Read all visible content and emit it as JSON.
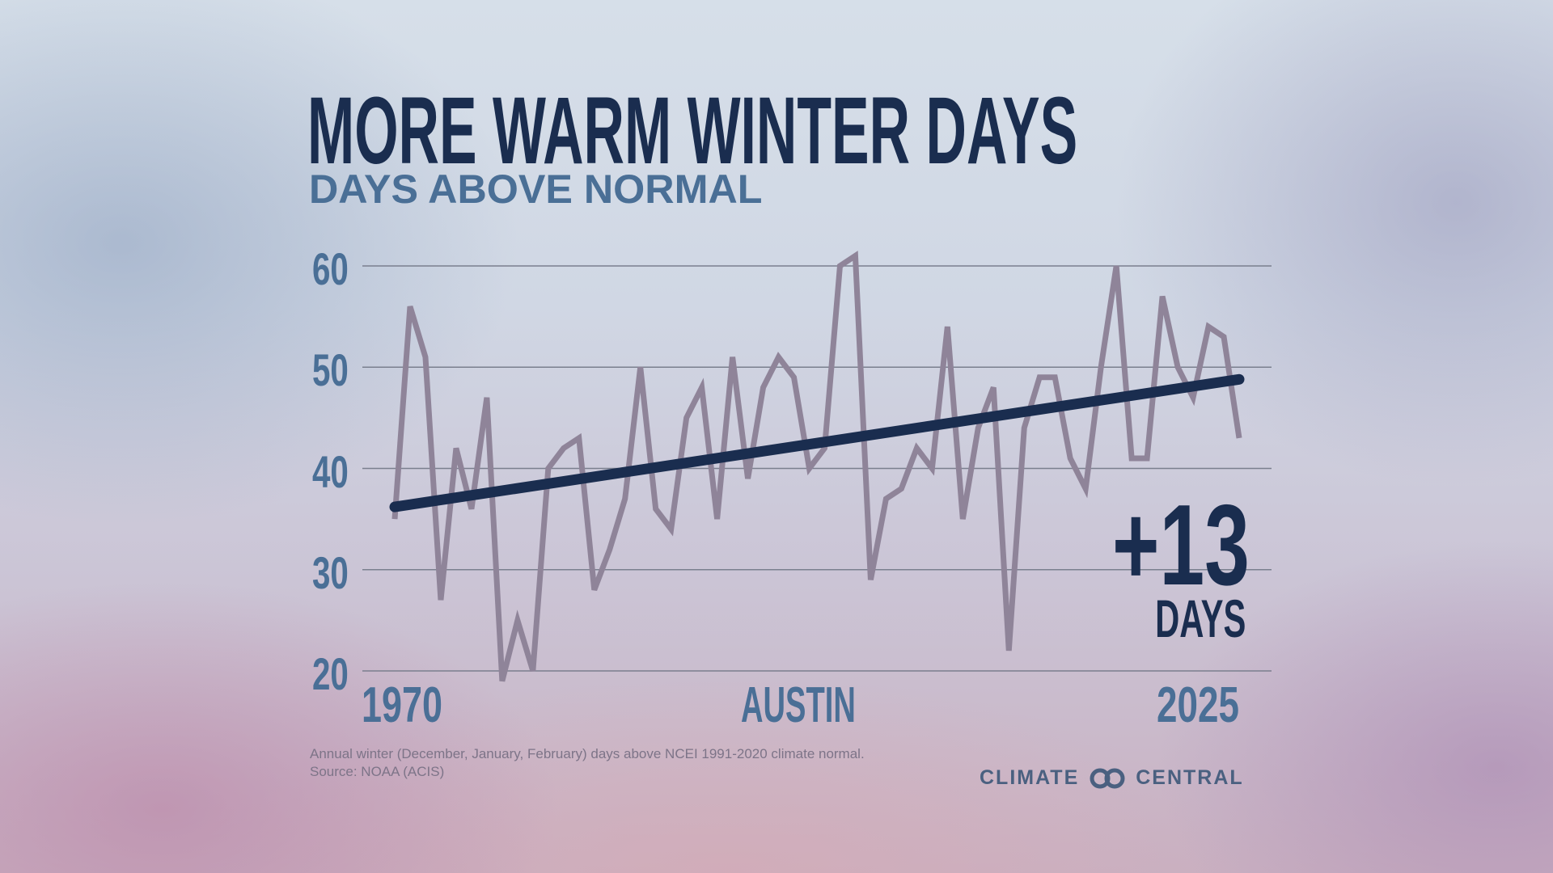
{
  "title": "MORE WARM WINTER DAYS",
  "subtitle": "DAYS ABOVE NORMAL",
  "location": "AUSTIN",
  "callout": {
    "value": "+13",
    "unit": "DAYS"
  },
  "footnote": {
    "line1": "Annual winter (December, January, February) days above NCEI 1991-2020 climate normal.",
    "line2": "Source: NOAA (ACIS)"
  },
  "logo": {
    "left": "CLIMATE",
    "right": "CENTRAL",
    "icon": "infinity-rings-icon"
  },
  "colors": {
    "title": "#1a2d4f",
    "accent": "#4a6f96",
    "series": "#8f8499",
    "trend": "#1a2d4f",
    "grid": "#7a7f8e"
  },
  "chart_data": {
    "type": "line",
    "title": "MORE WARM WINTER DAYS",
    "subtitle": "DAYS ABOVE NORMAL",
    "xlabel": "",
    "ylabel": "",
    "x_tick_labels": [
      "1970",
      "2025"
    ],
    "y_ticks": [
      20,
      30,
      40,
      50,
      60
    ],
    "ylim": [
      20,
      60
    ],
    "xlim": [
      1970,
      2025
    ],
    "grid": true,
    "x": [
      1970,
      1971,
      1972,
      1973,
      1974,
      1975,
      1976,
      1977,
      1978,
      1979,
      1980,
      1981,
      1982,
      1983,
      1984,
      1985,
      1986,
      1987,
      1988,
      1989,
      1990,
      1991,
      1992,
      1993,
      1994,
      1995,
      1996,
      1997,
      1998,
      1999,
      2000,
      2001,
      2002,
      2003,
      2004,
      2005,
      2006,
      2007,
      2008,
      2009,
      2010,
      2011,
      2012,
      2013,
      2014,
      2015,
      2016,
      2017,
      2018,
      2019,
      2020,
      2021,
      2022,
      2023,
      2024,
      2025
    ],
    "series": [
      {
        "name": "Days above normal",
        "values": [
          35,
          56,
          51,
          27,
          42,
          36,
          47,
          19,
          25,
          20,
          40,
          42,
          43,
          28,
          32,
          37,
          50,
          36,
          34,
          45,
          48,
          35,
          51,
          39,
          48,
          51,
          49,
          40,
          42,
          60,
          61,
          29,
          37,
          38,
          42,
          40,
          54,
          35,
          44,
          48,
          22,
          44,
          49,
          49,
          41,
          38,
          50,
          60,
          41,
          41,
          57,
          50,
          47,
          54,
          53,
          43
        ]
      },
      {
        "name": "Trend",
        "values_at_ends": [
          36.2,
          48.8
        ]
      }
    ],
    "annotation": "+13 DAYS"
  }
}
